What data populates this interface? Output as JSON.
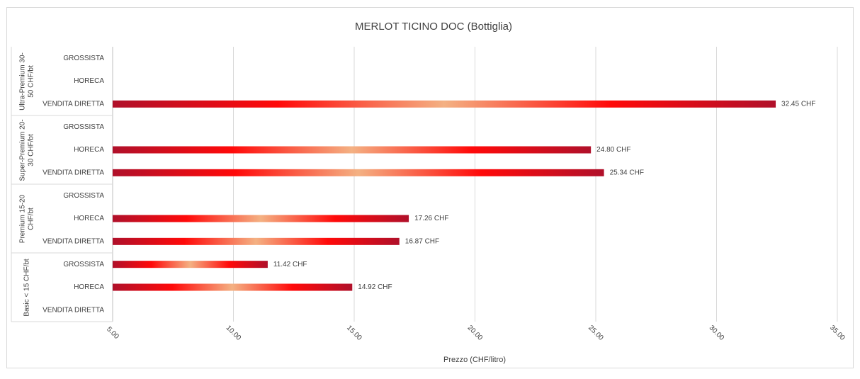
{
  "chart_data": {
    "type": "bar",
    "orientation": "horizontal",
    "title": "MERLOT TICINO DOC (Bottiglia)",
    "x_label": "Prezzo (CHF/litro)",
    "groups": [
      {
        "name": "Ultra-Premium 30-50 CHF/bt",
        "categories": [
          "GROSSISTA",
          "HORECA",
          "VENDITA DIRETTA"
        ],
        "values": [
          null,
          null,
          32.45
        ],
        "value_labels": [
          null,
          null,
          "32.45 CHF"
        ]
      },
      {
        "name": "Super-Premium 20-30 CHF/bt",
        "categories": [
          "GROSSISTA",
          "HORECA",
          "VENDITA DIRETTA"
        ],
        "values": [
          null,
          24.8,
          25.34
        ],
        "value_labels": [
          null,
          "24.80 CHF",
          "25.34 CHF"
        ]
      },
      {
        "name": "Premium 15-20 CHF/bt",
        "categories": [
          "GROSSISTA",
          "HORECA",
          "VENDITA DIRETTA"
        ],
        "values": [
          null,
          17.26,
          16.87
        ],
        "value_labels": [
          null,
          "17.26 CHF",
          "16.87 CHF"
        ]
      },
      {
        "name": "Basic < 15 CHF/bt",
        "categories": [
          "GROSSISTA",
          "HORECA",
          "VENDITA DIRETTA"
        ],
        "values": [
          11.42,
          14.92,
          null
        ],
        "value_labels": [
          "11.42 CHF",
          "14.92 CHF",
          null
        ]
      }
    ],
    "colors": [
      "#b0102a",
      "#ff0a0a",
      "#f4b183",
      "#ff0a0a",
      "#b0102a"
    ],
    "xlim": [
      5,
      35
    ],
    "xticks": [
      {
        "value": 5,
        "label": "5.00"
      },
      {
        "value": 10,
        "label": "10.00"
      },
      {
        "value": 15,
        "label": "15.00"
      },
      {
        "value": 20,
        "label": "20.00"
      },
      {
        "value": 25,
        "label": "25.00"
      },
      {
        "value": 30,
        "label": "30.00"
      },
      {
        "value": 35,
        "label": "35.00"
      }
    ],
    "grid": true
  }
}
